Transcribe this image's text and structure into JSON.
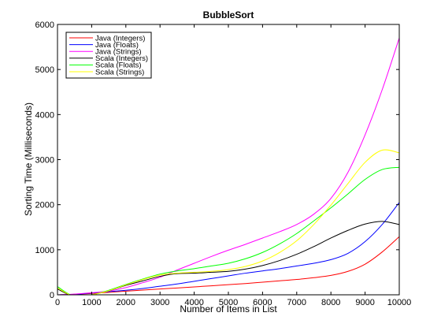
{
  "chart_data": {
    "type": "line",
    "title": "BubbleSort",
    "xlabel": "Number of Items in List",
    "ylabel": "Sorting Time (Milliseconds)",
    "xlim": [
      0,
      10000
    ],
    "ylim": [
      0,
      6000
    ],
    "xticks": [
      0,
      1000,
      2000,
      3000,
      4000,
      5000,
      6000,
      7000,
      8000,
      9000,
      10000
    ],
    "yticks": [
      0,
      1000,
      2000,
      3000,
      4000,
      5000,
      6000
    ],
    "grid": false,
    "legend_position": "top-left",
    "x": [
      0,
      500,
      1000,
      1500,
      2000,
      2500,
      3000,
      3500,
      4000,
      4500,
      5000,
      5500,
      6000,
      6500,
      7000,
      7500,
      8000,
      8500,
      9000,
      9500,
      10000
    ],
    "series": [
      {
        "name": "Java (Integers)",
        "color": "#ff0000",
        "values": [
          0,
          10,
          30,
          55,
          80,
          105,
          130,
          150,
          175,
          200,
          225,
          250,
          280,
          310,
          340,
          380,
          430,
          520,
          680,
          950,
          1290
        ]
      },
      {
        "name": "Java (Floats)",
        "color": "#0000ff",
        "values": [
          0,
          10,
          40,
          70,
          100,
          140,
          190,
          240,
          300,
          360,
          420,
          480,
          530,
          580,
          640,
          700,
          780,
          920,
          1180,
          1560,
          2050
        ]
      },
      {
        "name": "Java (Strings)",
        "color": "#ff00ff",
        "values": [
          0,
          15,
          45,
          85,
          160,
          270,
          390,
          550,
          700,
          850,
          990,
          1120,
          1260,
          1400,
          1560,
          1790,
          2140,
          2720,
          3550,
          4550,
          5700
        ]
      },
      {
        "name": "Scala (Integers)",
        "color": "#000000",
        "values": [
          130,
          -40,
          0,
          90,
          210,
          310,
          410,
          470,
          480,
          500,
          520,
          570,
          650,
          760,
          900,
          1070,
          1260,
          1430,
          1570,
          1630,
          1560
        ]
      },
      {
        "name": "Scala (Floats)",
        "color": "#00ff00",
        "values": [
          180,
          -40,
          0,
          100,
          230,
          350,
          460,
          530,
          580,
          640,
          700,
          800,
          940,
          1130,
          1360,
          1640,
          1930,
          2240,
          2560,
          2780,
          2830
        ]
      },
      {
        "name": "Scala (Strings)",
        "color": "#ffff00",
        "values": [
          150,
          -40,
          0,
          90,
          220,
          340,
          440,
          480,
          500,
          520,
          560,
          630,
          750,
          940,
          1200,
          1560,
          1990,
          2470,
          2940,
          3210,
          3150
        ]
      }
    ]
  }
}
